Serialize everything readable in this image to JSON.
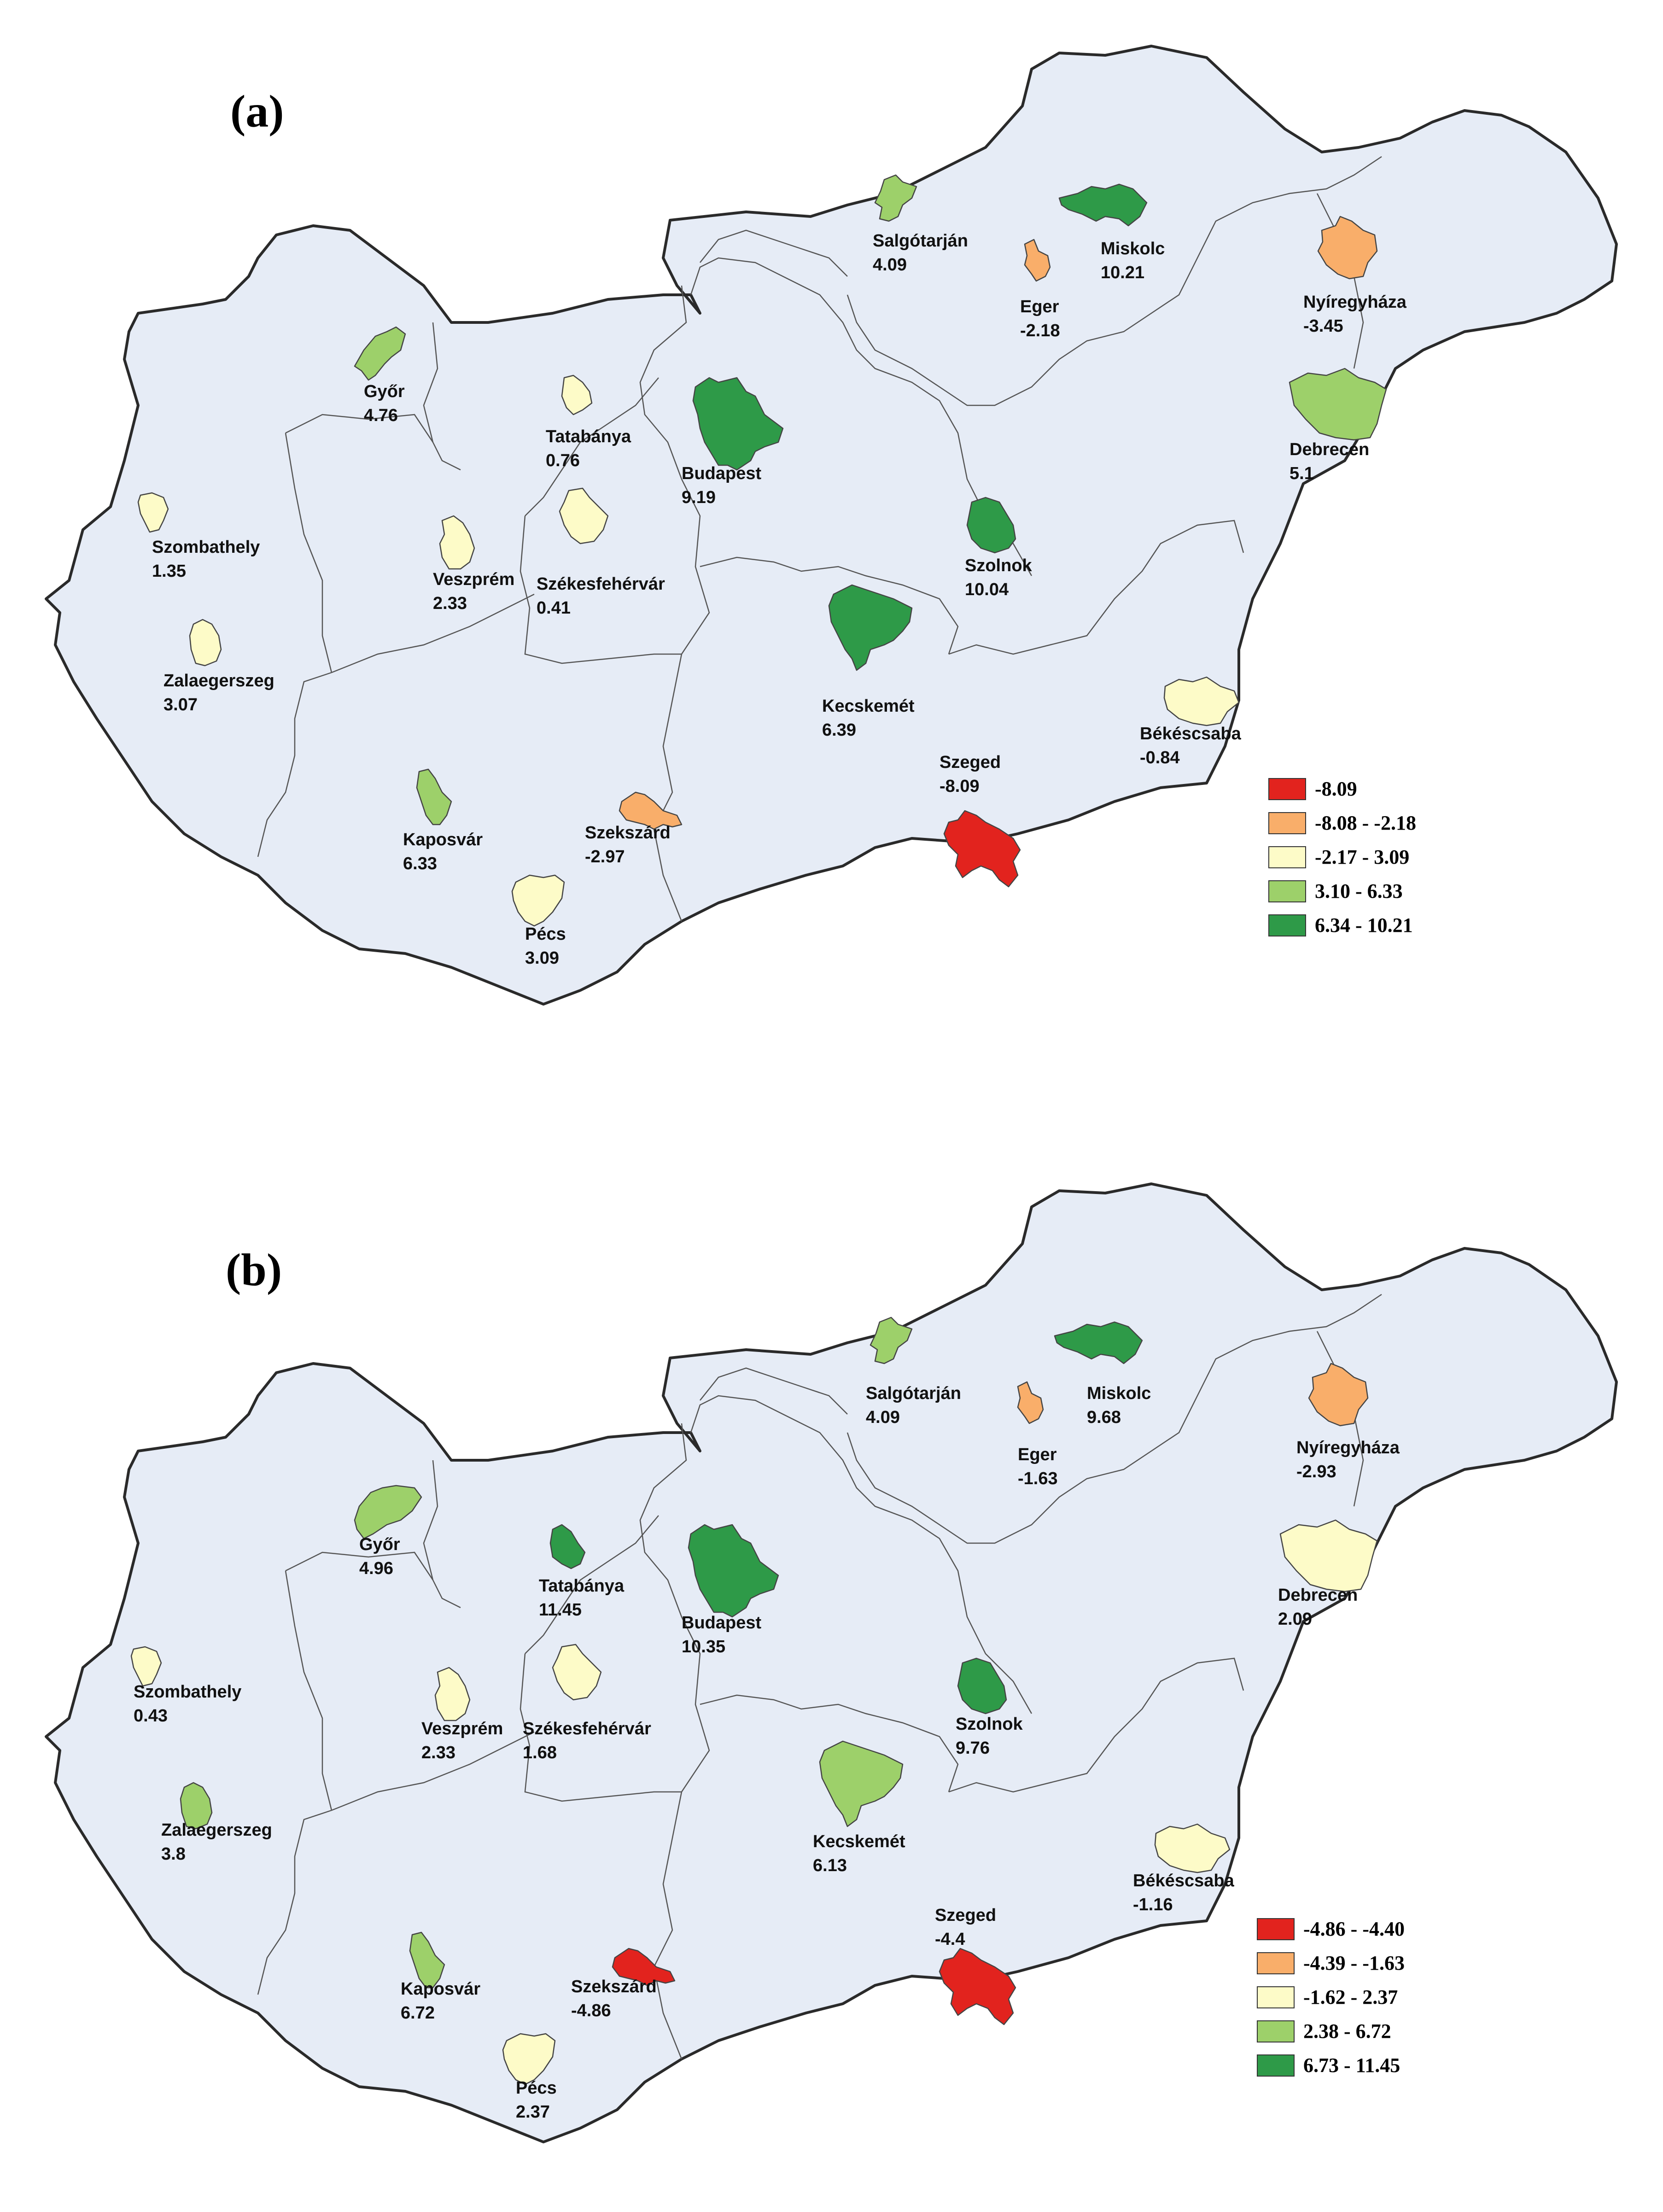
{
  "panels": [
    {
      "label": "(a)",
      "cities": [
        {
          "name": "Salgótarján",
          "value": "4.09",
          "color": "#9dd06a"
        },
        {
          "name": "Miskolc",
          "value": "10.21",
          "color": "#2e9a48"
        },
        {
          "name": "Eger",
          "value": "-2.18",
          "color": "#f9ae6a"
        },
        {
          "name": "Nyíregyháza",
          "value": "-3.45",
          "color": "#f9ae6a"
        },
        {
          "name": "Győr",
          "value": "4.76",
          "color": "#9dd06a"
        },
        {
          "name": "Tatabánya",
          "value": "0.76",
          "color": "#fdfbc8"
        },
        {
          "name": "Budapest",
          "value": "9.19",
          "color": "#2e9a48"
        },
        {
          "name": "Debrecen",
          "value": "5.1",
          "color": "#9dd06a"
        },
        {
          "name": "Szombathely",
          "value": "1.35",
          "color": "#fdfbc8"
        },
        {
          "name": "Veszprém",
          "value": "2.33",
          "color": "#fdfbc8"
        },
        {
          "name": "Székesfehérvár",
          "value": "0.41",
          "color": "#fdfbc8"
        },
        {
          "name": "Szolnok",
          "value": "10.04",
          "color": "#2e9a48"
        },
        {
          "name": "Zalaegerszeg",
          "value": "3.07",
          "color": "#fdfbc8"
        },
        {
          "name": "Kecskemét",
          "value": "6.39",
          "color": "#2e9a48"
        },
        {
          "name": "Békéscsaba",
          "value": "-0.84",
          "color": "#fdfbc8"
        },
        {
          "name": "Szeged",
          "value": "-8.09",
          "color": "#e2231e"
        },
        {
          "name": "Kaposvár",
          "value": "6.33",
          "color": "#9dd06a"
        },
        {
          "name": "Szekszárd",
          "value": "-2.97",
          "color": "#f9ae6a"
        },
        {
          "name": "Pécs",
          "value": "3.09",
          "color": "#fdfbc8"
        }
      ],
      "legend": [
        {
          "label": "-8.09",
          "color": "#e2231e"
        },
        {
          "label": "-8.08 - -2.18",
          "color": "#f9ae6a"
        },
        {
          "label": "-2.17 - 3.09",
          "color": "#fdfbc8"
        },
        {
          "label": "3.10 - 6.33",
          "color": "#9dd06a"
        },
        {
          "label": "6.34 - 10.21",
          "color": "#2e9a48"
        }
      ]
    },
    {
      "label": "(b)",
      "cities": [
        {
          "name": "Salgótarján",
          "value": "4.09",
          "color": "#9dd06a"
        },
        {
          "name": "Miskolc",
          "value": "9.68",
          "color": "#2e9a48"
        },
        {
          "name": "Eger",
          "value": "-1.63",
          "color": "#f9ae6a"
        },
        {
          "name": "Nyíregyháza",
          "value": "-2.93",
          "color": "#f9ae6a"
        },
        {
          "name": "Győr",
          "value": "4.96",
          "color": "#9dd06a"
        },
        {
          "name": "Tatabánya",
          "value": "11.45",
          "color": "#2e9a48"
        },
        {
          "name": "Budapest",
          "value": "10.35",
          "color": "#2e9a48"
        },
        {
          "name": "Debrecen",
          "value": "2.09",
          "color": "#fdfbc8"
        },
        {
          "name": "Szombathely",
          "value": "0.43",
          "color": "#fdfbc8"
        },
        {
          "name": "Veszprém",
          "value": "2.33",
          "color": "#fdfbc8"
        },
        {
          "name": "Székesfehérvár",
          "value": "1.68",
          "color": "#fdfbc8"
        },
        {
          "name": "Szolnok",
          "value": "9.76",
          "color": "#2e9a48"
        },
        {
          "name": "Zalaegerszeg",
          "value": "3.8",
          "color": "#9dd06a"
        },
        {
          "name": "Kecskemét",
          "value": "6.13",
          "color": "#9dd06a"
        },
        {
          "name": "Békéscsaba",
          "value": "-1.16",
          "color": "#fdfbc8"
        },
        {
          "name": "Szeged",
          "value": "-4.4",
          "color": "#e2231e"
        },
        {
          "name": "Kaposvár",
          "value": "6.72",
          "color": "#9dd06a"
        },
        {
          "name": "Szekszárd",
          "value": "-4.86",
          "color": "#e2231e"
        },
        {
          "name": "Pécs",
          "value": "2.37",
          "color": "#fdfbc8"
        }
      ],
      "legend": [
        {
          "label": "-4.86 - -4.40",
          "color": "#e2231e"
        },
        {
          "label": "-4.39 - -1.63",
          "color": "#f9ae6a"
        },
        {
          "label": "-1.62 - 2.37",
          "color": "#fdfbc8"
        },
        {
          "label": "2.38 - 6.72",
          "color": "#9dd06a"
        },
        {
          "label": "6.73 - 11.45",
          "color": "#2e9a48"
        }
      ]
    }
  ]
}
